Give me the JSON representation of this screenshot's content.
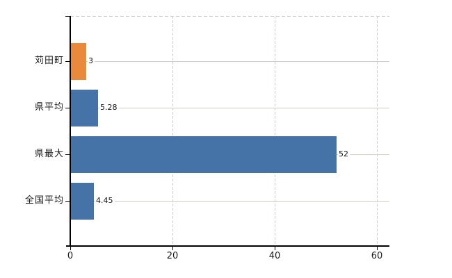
{
  "chart_data": {
    "type": "bar",
    "orientation": "horizontal",
    "title": "",
    "xlabel": "",
    "ylabel": "",
    "categories": [
      "苅田町",
      "県平均",
      "県最大",
      "全国平均"
    ],
    "values": [
      3,
      5.28,
      52,
      4.45
    ],
    "value_labels": [
      "3",
      "5.28",
      "52",
      "4.45"
    ],
    "bar_colors": [
      "#E8893B",
      "#4572A7",
      "#4572A7",
      "#4572A7"
    ],
    "xlim": [
      0,
      62.45
    ],
    "xticks": [
      0,
      20,
      40,
      60
    ],
    "xtick_labels": [
      "0",
      "20",
      "40",
      "60"
    ],
    "grid": {
      "vertical_style": "dashed",
      "horizontal_style": "solid",
      "plot_top_border_style": "dashed"
    },
    "legend": "none",
    "colors": {
      "bar_blue": "#4572A7",
      "bar_orange": "#E8893B",
      "axis_line": "#000000",
      "grid_vertical": "#D3CDD3",
      "grid_horizontal": "#C9CFC5",
      "plot_border_top": "#CFC7CF",
      "tick_text": "#1a1a1a",
      "value_text": "#111111",
      "background": "#ffffff"
    }
  }
}
